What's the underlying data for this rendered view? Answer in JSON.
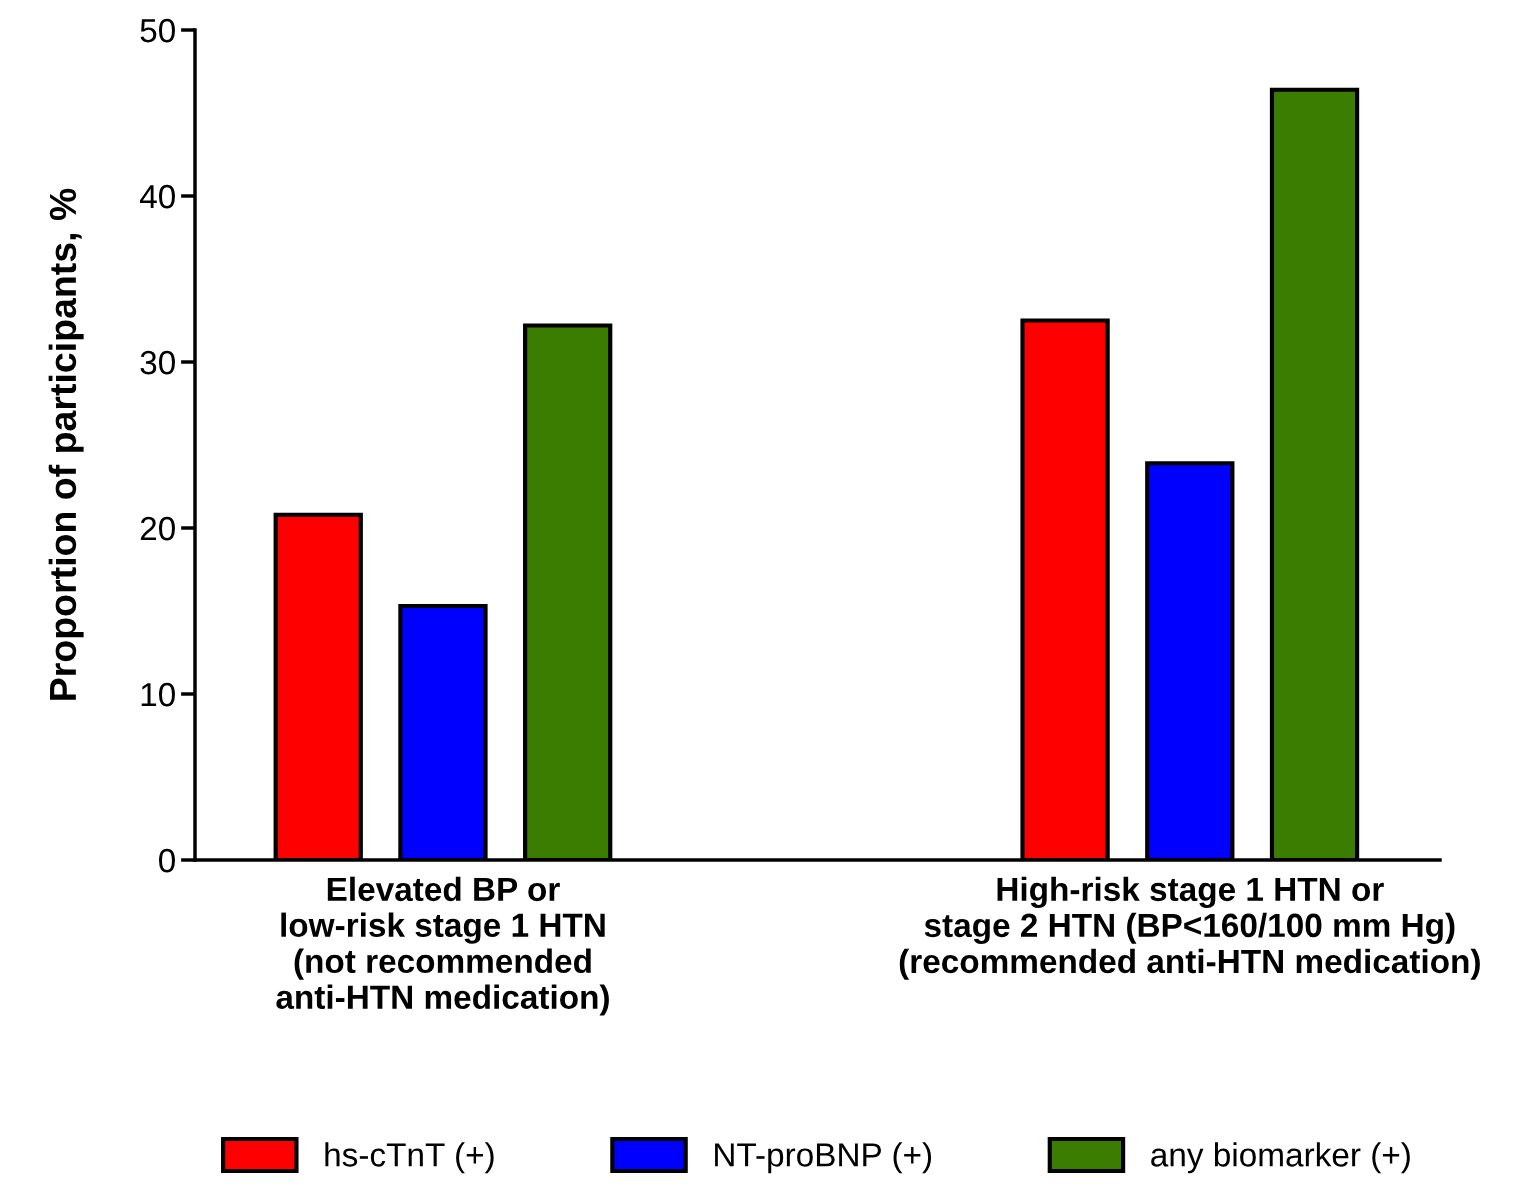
{
  "chart_data": {
    "type": "bar",
    "ylabel": "Proportion of participants, %",
    "categories": [
      "Elevated BP or\nlow-risk stage 1 HTN\n(not recommended\nanti-HTN medication)",
      "High-risk stage 1 HTN or\nstage 2 HTN (BP<160/100 mm Hg)\n(recommended anti-HTN medication)"
    ],
    "series": [
      {
        "name": "hs-cTnT (+)",
        "color": "#ff0000",
        "values": [
          20.8,
          32.5
        ]
      },
      {
        "name": "NT-proBNP (+)",
        "color": "#0000ff",
        "values": [
          15.3,
          23.9
        ]
      },
      {
        "name": "any biomarker (+)",
        "color": "#3a7d00",
        "values": [
          32.2,
          46.4
        ]
      }
    ],
    "ylim": [
      0,
      50
    ],
    "yticks": [
      0,
      10,
      20,
      30,
      40,
      50
    ],
    "grid": false,
    "legend": "bottom"
  }
}
